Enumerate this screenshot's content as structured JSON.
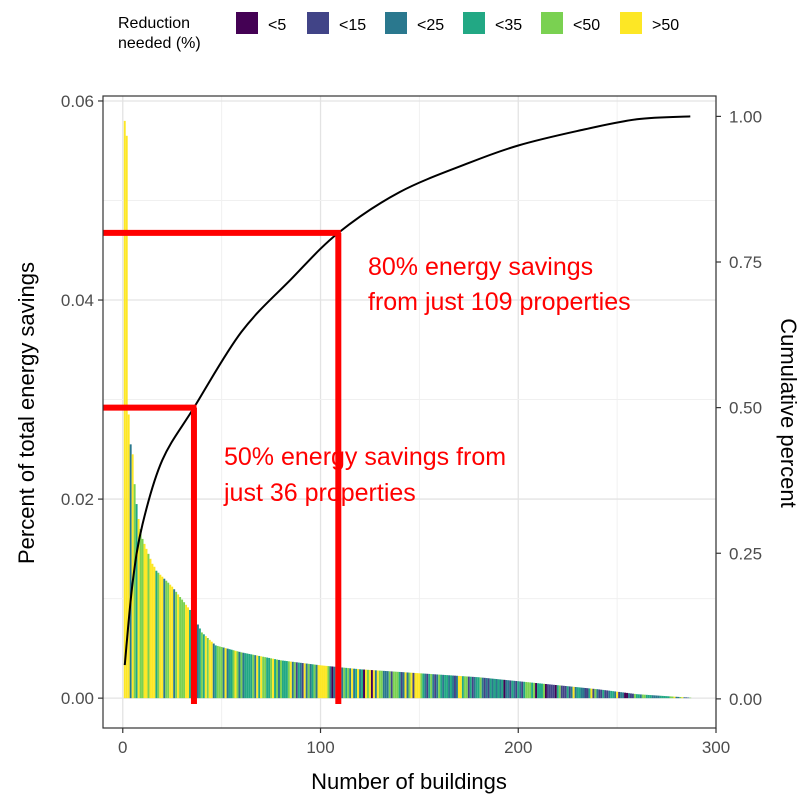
{
  "chart_data": {
    "type": "bar",
    "xlabel": "Number of buildings",
    "ylabel": "Percent of total energy savings",
    "y2label": "Cumulative percent",
    "xlim": [
      -10,
      300
    ],
    "ylim": [
      -0.003,
      0.0605
    ],
    "y2lim": [
      -0.05,
      1.035
    ],
    "x_ticks": [
      0,
      100,
      200,
      300
    ],
    "y_ticks": [
      0.0,
      0.02,
      0.04,
      0.06
    ],
    "y_tick_labels": [
      "0.00",
      "0.02",
      "0.04",
      "0.06"
    ],
    "y2_ticks": [
      0.0,
      0.25,
      0.5,
      0.75,
      1.0
    ],
    "y2_tick_labels": [
      "0.00",
      "0.25",
      "0.50",
      "0.75",
      "1.00"
    ],
    "grid": true,
    "legend": {
      "position": "top",
      "title_lines": [
        "Reduction",
        "needed (%)"
      ],
      "entries": [
        {
          "label": "<5",
          "color": "#440154"
        },
        {
          "label": "<15",
          "color": "#414487"
        },
        {
          "label": "<25",
          "color": "#2a788e"
        },
        {
          "label": "<35",
          "color": "#22a884"
        },
        {
          "label": "<50",
          "color": "#7ad151"
        },
        {
          "label": ">50",
          "color": "#fde725"
        }
      ]
    },
    "n_buildings": 287,
    "bar_shape": {
      "lead_values": [
        0.058,
        0.0565,
        0.0285,
        0.0255,
        0.0245,
        0.0215,
        0.0195,
        0.018,
        0.017,
        0.016,
        0.0155,
        0.015,
        0.0145,
        0.014,
        0.0135,
        0.0132
      ],
      "anchors": [
        [
          17,
          0.0128
        ],
        [
          25,
          0.0112
        ],
        [
          35,
          0.0086
        ],
        [
          40,
          0.0066
        ],
        [
          47,
          0.0053
        ],
        [
          60,
          0.0046
        ],
        [
          80,
          0.0038
        ],
        [
          100,
          0.0033
        ],
        [
          120,
          0.0029
        ],
        [
          150,
          0.0025
        ],
        [
          180,
          0.0021
        ],
        [
          200,
          0.0017
        ],
        [
          220,
          0.0013
        ],
        [
          240,
          0.0009
        ],
        [
          260,
          0.0004
        ],
        [
          275,
          0.0002
        ],
        [
          287,
          5e-05
        ]
      ]
    },
    "bar_color_mix": [
      {
        "until": 20,
        "weights": [
          0,
          0,
          0.1,
          0.15,
          0.35,
          0.4
        ]
      },
      {
        "until": 60,
        "weights": [
          0,
          0.05,
          0.15,
          0.2,
          0.3,
          0.3
        ]
      },
      {
        "until": 150,
        "weights": [
          0.03,
          0.08,
          0.2,
          0.25,
          0.3,
          0.14
        ]
      },
      {
        "until": 290,
        "weights": [
          0.05,
          0.2,
          0.3,
          0.27,
          0.15,
          0.03
        ]
      }
    ],
    "cumulative_line": {
      "name": "Cumulative percent",
      "points": [
        [
          1,
          0.058
        ],
        [
          5,
          0.2
        ],
        [
          10,
          0.3
        ],
        [
          20,
          0.41
        ],
        [
          36,
          0.5
        ],
        [
          60,
          0.63
        ],
        [
          85,
          0.72
        ],
        [
          109,
          0.8
        ],
        [
          140,
          0.87
        ],
        [
          175,
          0.92
        ],
        [
          200,
          0.95
        ],
        [
          230,
          0.975
        ],
        [
          260,
          0.995
        ],
        [
          287,
          1.0
        ]
      ]
    },
    "annotations": [
      {
        "text_lines": [
          "80% energy savings",
          "from just 109 properties"
        ],
        "x": 109,
        "y2": 0.8
      },
      {
        "text_lines": [
          "50% energy savings from",
          "just 36 properties"
        ],
        "x": 36,
        "y2": 0.5
      }
    ],
    "annotation_color": "#ff0000"
  }
}
